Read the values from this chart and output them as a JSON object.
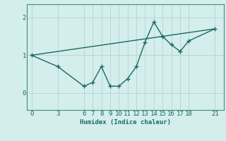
{
  "title": "",
  "xlabel": "Humidex (Indice chaleur)",
  "bg_color": "#d4eeed",
  "line_color": "#1a6b5a",
  "grid_color": "#b8d8d4",
  "axis_color": "#4a8a7a",
  "x_ticks": [
    0,
    3,
    6,
    7,
    8,
    9,
    10,
    11,
    12,
    13,
    14,
    15,
    16,
    17,
    18,
    21
  ],
  "yticks": [
    0,
    1,
    2
  ],
  "xlim": [
    -0.5,
    22
  ],
  "ylim": [
    -0.45,
    2.35
  ],
  "series1_x": [
    0,
    3,
    6,
    7,
    8,
    9,
    10,
    11,
    12,
    13,
    14,
    15,
    16,
    17,
    18,
    21
  ],
  "series1_y": [
    1.0,
    0.7,
    0.18,
    0.28,
    0.7,
    0.18,
    0.18,
    0.38,
    0.7,
    1.35,
    1.88,
    1.5,
    1.28,
    1.1,
    1.38,
    1.7
  ],
  "series2_x": [
    0,
    21
  ],
  "series2_y": [
    1.0,
    1.7
  ],
  "marker": "+",
  "markersize": 5,
  "linewidth": 1.0,
  "tick_fontsize": 6.5,
  "xlabel_fontsize": 6.5
}
